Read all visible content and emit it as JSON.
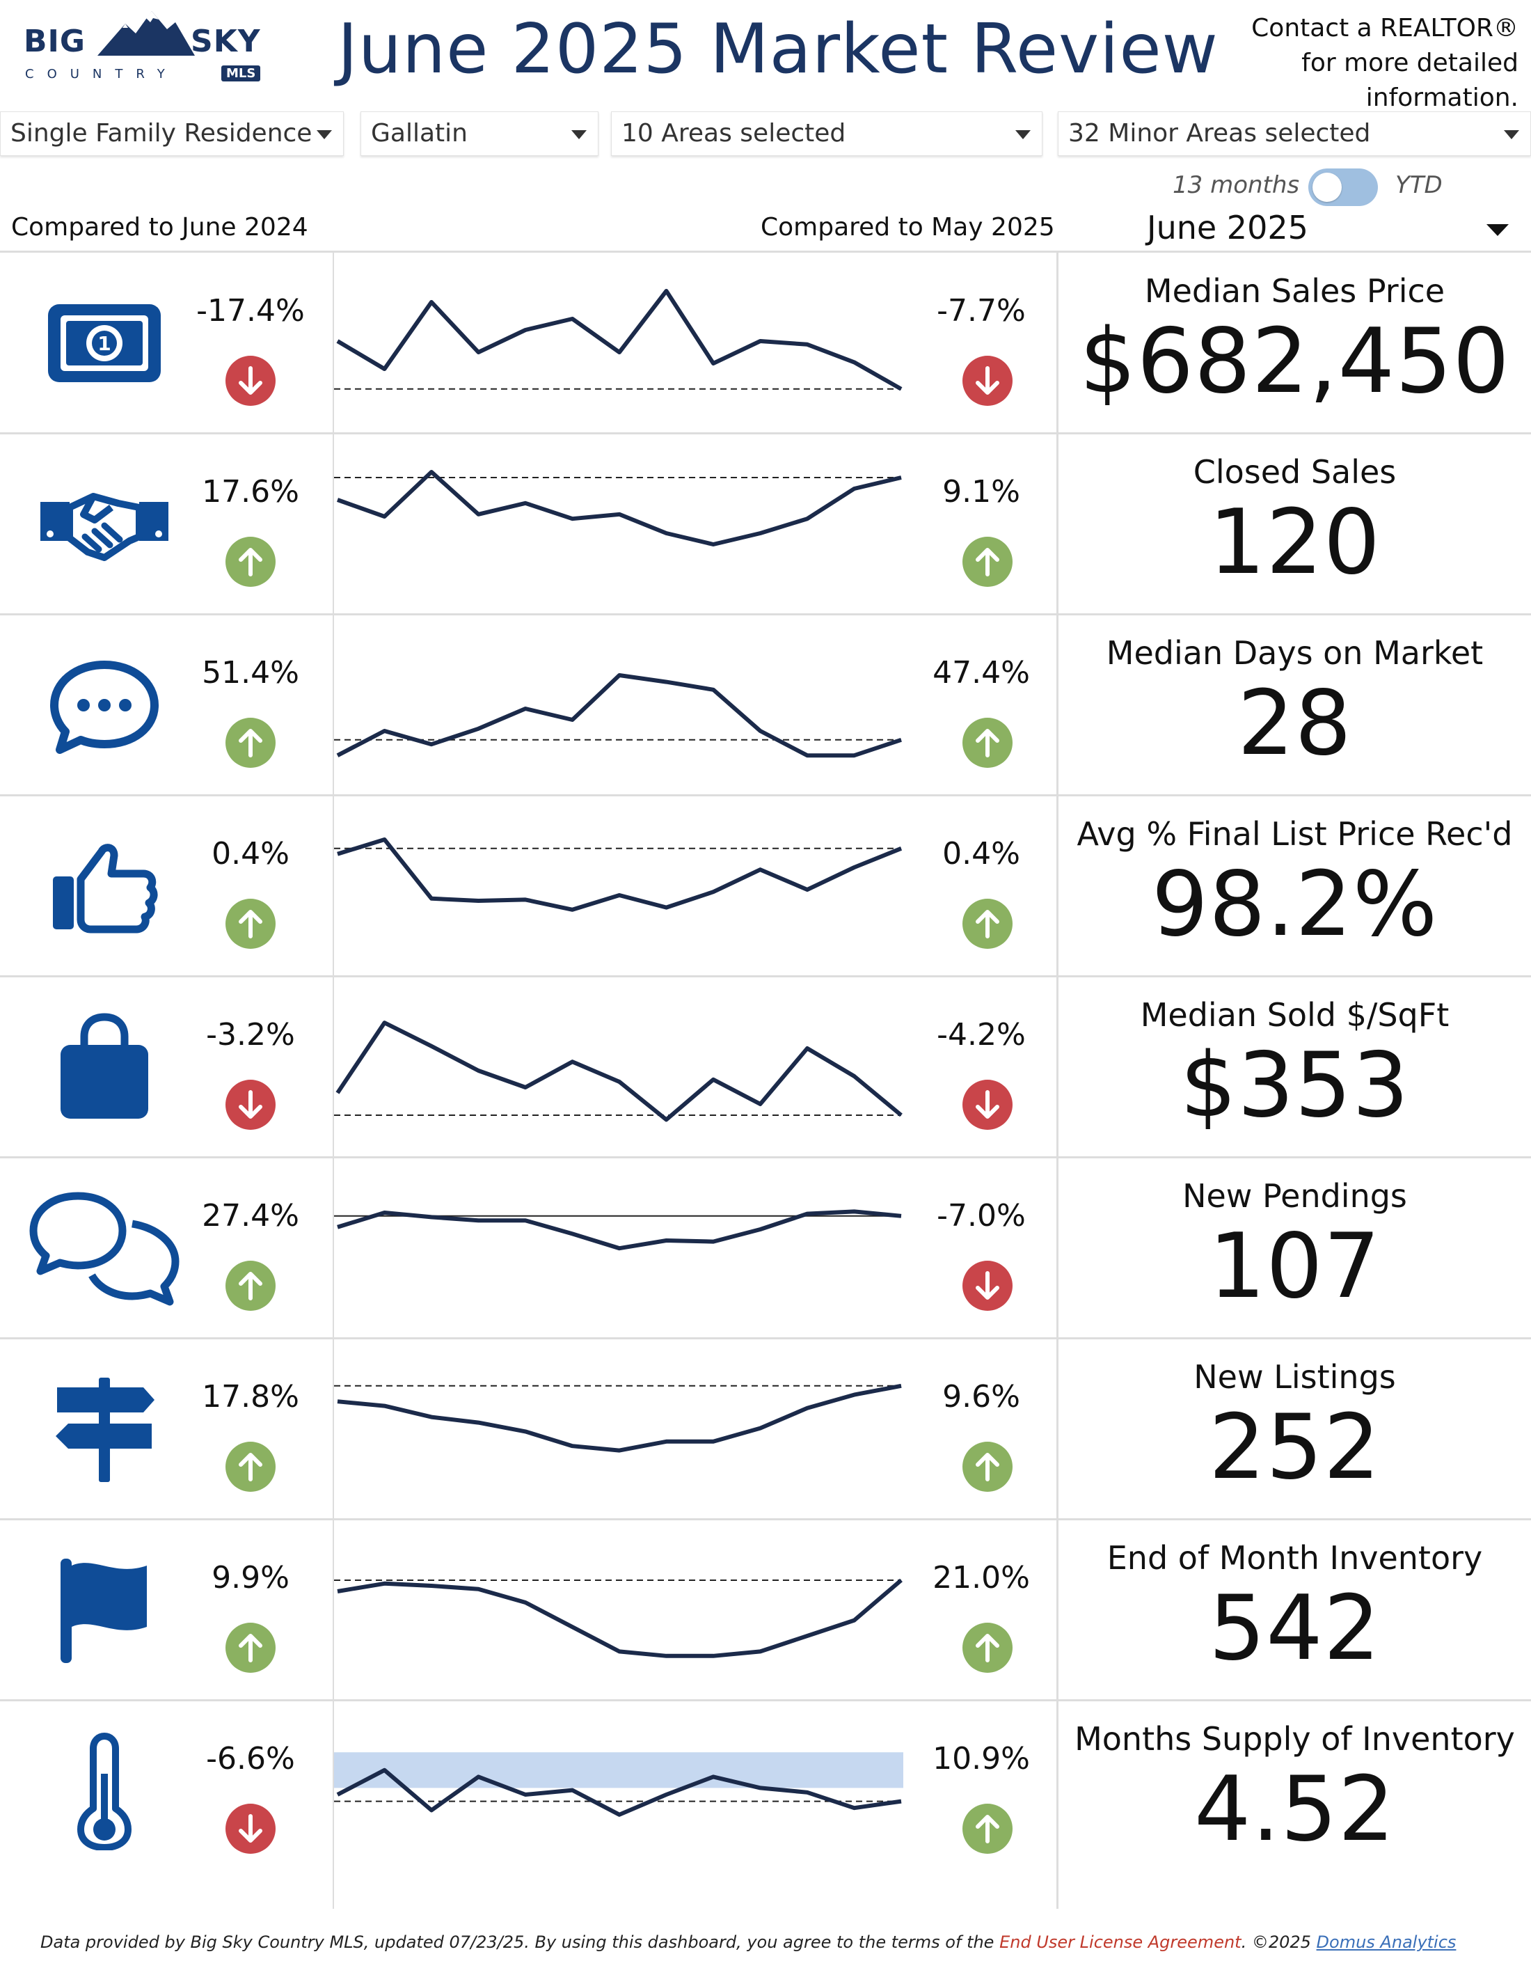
{
  "header": {
    "logo_big": "BIG",
    "logo_sky": "SKY",
    "logo_country": "COUNTRY",
    "logo_mls": "MLS",
    "title": "June 2025 Market Review",
    "contact": "Contact a REALTOR® for more detailed information."
  },
  "filters": [
    {
      "value": "Single Family Residence"
    },
    {
      "value": "Gallatin"
    },
    {
      "value": "10 Areas selected"
    },
    {
      "value": "32 Minor Areas selected"
    }
  ],
  "toggle": {
    "left_label": "13 months",
    "right_label": "YTD",
    "state": "13 months"
  },
  "compare": {
    "year_label": "Compared to June 2024",
    "month_label": "Compared to May 2025"
  },
  "period": {
    "selected": "June 2025"
  },
  "colors": {
    "brand": "#1b3563",
    "icon": "#0f4c97",
    "up": "#8bb161",
    "down": "#c9454a",
    "line": "#1b2a4a"
  },
  "metrics": [
    {
      "name": "Median Sales Price",
      "value": "$682,450",
      "yoy": "-17.4%",
      "yoy_dir": "down",
      "mom": "-7.7%",
      "mom_dir": "down",
      "icon": "money-icon",
      "spark": [
        0.55,
        0.3,
        0.9,
        0.45,
        0.65,
        0.75,
        0.45,
        1.0,
        0.35,
        0.55,
        0.52,
        0.36,
        0.12
      ],
      "ref": 0.12,
      "ref_style": "dashed"
    },
    {
      "name": "Closed Sales",
      "value": "120",
      "yoy": "17.6%",
      "yoy_dir": "up",
      "mom": "9.1%",
      "mom_dir": "up",
      "icon": "handshake-icon",
      "spark": [
        0.75,
        0.6,
        1.0,
        0.62,
        0.72,
        0.58,
        0.62,
        0.45,
        0.35,
        0.45,
        0.58,
        0.85,
        0.95
      ],
      "ref": 0.95,
      "ref_style": "dashed"
    },
    {
      "name": "Median Days on Market",
      "value": "28",
      "yoy": "51.4%",
      "yoy_dir": "up",
      "mom": "47.4%",
      "mom_dir": "up",
      "icon": "chat-bubble-icon",
      "spark": [
        0.08,
        0.3,
        0.18,
        0.32,
        0.5,
        0.4,
        0.8,
        0.74,
        0.67,
        0.3,
        0.08,
        0.08,
        0.22
      ],
      "ref": 0.22,
      "ref_style": "dashed"
    },
    {
      "name": "Avg % Final List Price Rec'd",
      "value": "98.2%",
      "yoy": "0.4%",
      "yoy_dir": "up",
      "mom": "0.4%",
      "mom_dir": "up",
      "icon": "thumbs-up-icon",
      "spark": [
        0.82,
        0.95,
        0.42,
        0.4,
        0.41,
        0.32,
        0.45,
        0.34,
        0.48,
        0.68,
        0.5,
        0.7,
        0.87
      ],
      "ref": 0.87,
      "ref_style": "dashed"
    },
    {
      "name": "Median Sold $/SqFt",
      "value": "$353",
      "yoy": "-3.2%",
      "yoy_dir": "down",
      "mom": "-4.2%",
      "mom_dir": "down",
      "icon": "shopping-bag-icon",
      "spark": [
        0.3,
        0.93,
        0.72,
        0.5,
        0.35,
        0.58,
        0.4,
        0.06,
        0.42,
        0.2,
        0.7,
        0.45,
        0.1
      ],
      "ref": 0.1,
      "ref_style": "dashed"
    },
    {
      "name": "New Pendings",
      "value": "107",
      "yoy": "27.4%",
      "yoy_dir": "up",
      "mom": "-7.0%",
      "mom_dir": "down",
      "icon": "conversation-icon",
      "spark": [
        0.72,
        0.85,
        0.81,
        0.78,
        0.78,
        0.66,
        0.53,
        0.6,
        0.59,
        0.7,
        0.84,
        0.86,
        0.82
      ],
      "ref": 0.82,
      "ref_style": "solid"
    },
    {
      "name": "New Listings",
      "value": "252",
      "yoy": "17.8%",
      "yoy_dir": "up",
      "mom": "9.6%",
      "mom_dir": "up",
      "icon": "signpost-icon",
      "spark": [
        0.78,
        0.74,
        0.64,
        0.59,
        0.51,
        0.38,
        0.34,
        0.42,
        0.42,
        0.54,
        0.72,
        0.84,
        0.92
      ],
      "ref": 0.92,
      "ref_style": "dashed"
    },
    {
      "name": "End of Month Inventory",
      "value": "542",
      "yoy": "9.9%",
      "yoy_dir": "up",
      "mom": "21.0%",
      "mom_dir": "up",
      "icon": "flag-icon",
      "spark": [
        0.7,
        0.77,
        0.75,
        0.72,
        0.6,
        0.38,
        0.16,
        0.12,
        0.12,
        0.16,
        0.3,
        0.44,
        0.8
      ],
      "ref": 0.8,
      "ref_style": "dashed"
    },
    {
      "name": "Months Supply of Inventory",
      "value": "4.52",
      "yoy": "-6.6%",
      "yoy_dir": "down",
      "mom": "10.9%",
      "mom_dir": "up",
      "icon": "thermometer-icon",
      "spark": [
        0.5,
        0.72,
        0.36,
        0.66,
        0.5,
        0.54,
        0.32,
        0.5,
        0.66,
        0.56,
        0.52,
        0.38,
        0.44
      ],
      "ref": 0.44,
      "ref_style": "dashed",
      "band": [
        0.56,
        0.88
      ]
    }
  ],
  "footer": {
    "prefix": "Data provided by Big Sky Country MLS, updated 07/23/25.  By using this dashboard, you agree to the terms of the ",
    "eula": "End User License Agreement",
    "middle": ".  ©2025 ",
    "domus": "Domus Analytics"
  }
}
